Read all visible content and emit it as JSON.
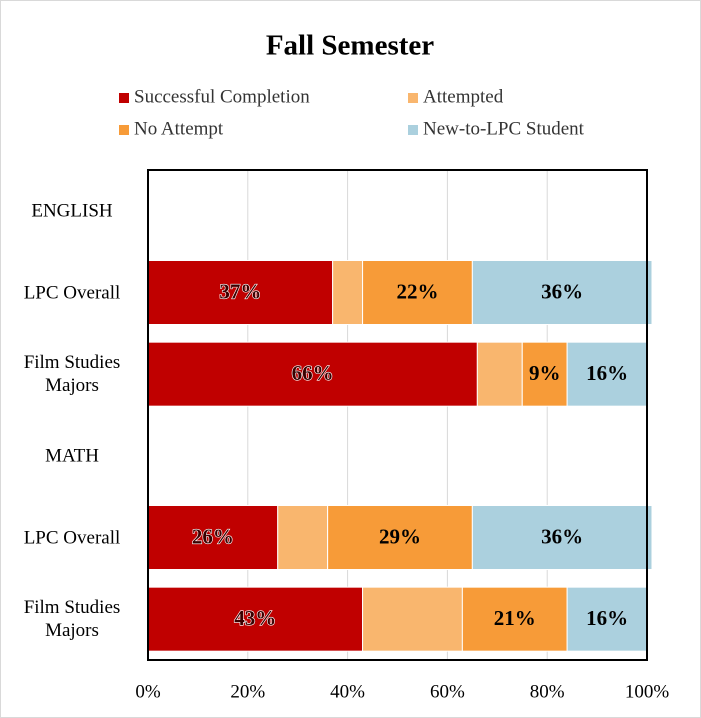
{
  "chart_data": {
    "type": "stacked_barh",
    "title": "Fall Semester",
    "legend": "top",
    "grid": true,
    "categories": [
      "ENGLISH",
      "LPC Overall",
      "Film Studies Majors",
      "MATH",
      "LPC Overall",
      "Film Studies Majors"
    ],
    "series": [
      {
        "name": "Successful Completion",
        "color": "#c00000",
        "values": [
          null,
          37,
          66,
          null,
          26,
          43
        ],
        "value_labels": [
          null,
          "37%",
          "66%",
          null,
          "26%",
          "43%"
        ]
      },
      {
        "name": "Attempted",
        "color": "#f9b66e",
        "values": [
          null,
          6,
          9,
          null,
          10,
          20
        ],
        "value_labels": [
          null,
          null,
          null,
          null,
          null,
          null
        ]
      },
      {
        "name": "No Attempt",
        "color": "#f79b38",
        "values": [
          null,
          22,
          9,
          null,
          29,
          21
        ],
        "value_labels": [
          null,
          "22%",
          "9%",
          null,
          "29%",
          "21%"
        ]
      },
      {
        "name": "New-to-LPC Student",
        "color": "#abd0de",
        "values": [
          null,
          36,
          16,
          null,
          36,
          16
        ],
        "value_labels": [
          null,
          "36%",
          "16%",
          null,
          "36%",
          "16%"
        ]
      }
    ],
    "xlim": [
      0,
      100
    ],
    "xticks": [
      {
        "value": 0,
        "label": "0%"
      },
      {
        "value": 20,
        "label": "20%"
      },
      {
        "value": 40,
        "label": "40%"
      },
      {
        "value": 60,
        "label": "60%"
      },
      {
        "value": 80,
        "label": "80%"
      },
      {
        "value": 100,
        "label": "100%"
      }
    ]
  }
}
